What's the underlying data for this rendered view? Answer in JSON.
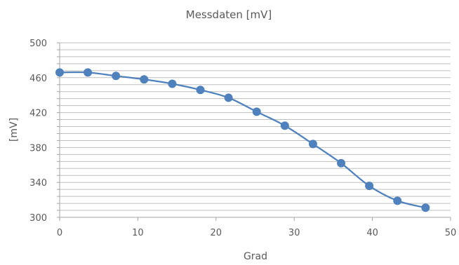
{
  "chart_data": {
    "type": "line",
    "title": "Messdaten [mV]",
    "xlabel": "Grad",
    "ylabel": "[mV]",
    "xlim": [
      0,
      50
    ],
    "ylim": [
      300,
      500
    ],
    "x_ticks": [
      0,
      10,
      20,
      30,
      40,
      50
    ],
    "y_ticks": [
      300,
      340,
      380,
      420,
      460,
      500
    ],
    "y_minor_step": 8,
    "grid": true,
    "legend": "none",
    "line_style": "smoothed",
    "series": [
      {
        "color": "#4f81bd",
        "points": [
          {
            "x": 0.0,
            "y": 466
          },
          {
            "x": 3.6,
            "y": 466
          },
          {
            "x": 7.2,
            "y": 462
          },
          {
            "x": 10.8,
            "y": 458
          },
          {
            "x": 14.4,
            "y": 453
          },
          {
            "x": 18.0,
            "y": 446
          },
          {
            "x": 21.6,
            "y": 437
          },
          {
            "x": 25.2,
            "y": 421
          },
          {
            "x": 28.8,
            "y": 405
          },
          {
            "x": 32.4,
            "y": 384
          },
          {
            "x": 36.0,
            "y": 362
          },
          {
            "x": 39.6,
            "y": 336
          },
          {
            "x": 43.2,
            "y": 319
          },
          {
            "x": 46.8,
            "y": 311
          }
        ]
      }
    ]
  }
}
